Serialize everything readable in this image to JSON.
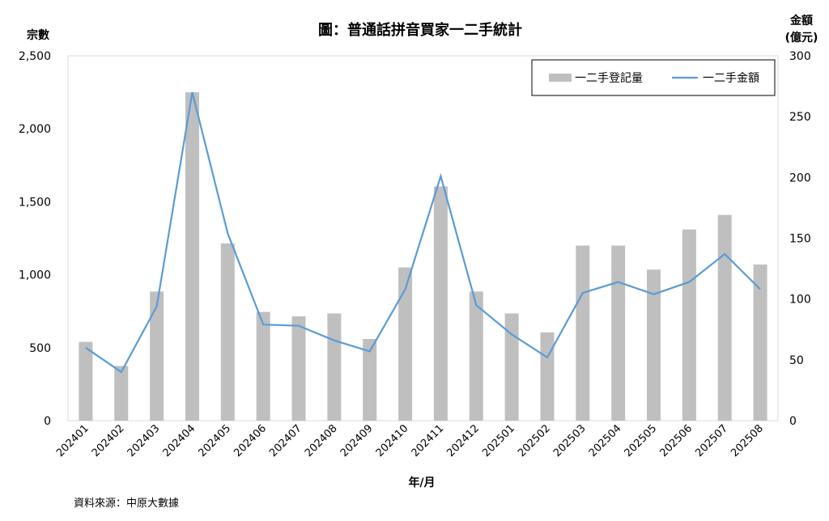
{
  "chart_data": {
    "type": "bar",
    "title": "圖：普通話拼音買家一二手統計",
    "xlabel": "年/月",
    "ylabel": "宗數",
    "y2label": [
      "金額",
      "(億元)"
    ],
    "ylim": [
      0,
      2500
    ],
    "y2lim": [
      0,
      300
    ],
    "yticks": [
      "0",
      "500",
      "1,000",
      "1,500",
      "2,000",
      "2,500"
    ],
    "y2ticks": [
      "0",
      "50",
      "100",
      "150",
      "200",
      "250",
      "300"
    ],
    "categories": [
      "202401",
      "202402",
      "202403",
      "202404",
      "202405",
      "202406",
      "202407",
      "202408",
      "202409",
      "202410",
      "202411",
      "202412",
      "202501",
      "202502",
      "202503",
      "202504",
      "202505",
      "202506",
      "202507",
      "202508"
    ],
    "series": [
      {
        "name": "一二手登記量",
        "type": "bar",
        "axis": "left",
        "color": "#BFBFBF",
        "values": [
          540,
          375,
          885,
          2250,
          1215,
          745,
          715,
          735,
          560,
          1050,
          1605,
          885,
          735,
          605,
          1200,
          1200,
          1035,
          1310,
          1410,
          1070
        ]
      },
      {
        "name": "一二手金額",
        "type": "line",
        "axis": "right",
        "color": "#5B9BD5",
        "values": [
          60,
          40,
          94,
          270,
          154,
          79,
          78,
          66,
          57,
          108,
          201,
          95,
          71,
          52,
          105,
          114,
          104,
          114,
          137,
          108
        ]
      }
    ],
    "legend": "top-right",
    "grid": false
  },
  "source_note": "資料來源：中原大數據"
}
